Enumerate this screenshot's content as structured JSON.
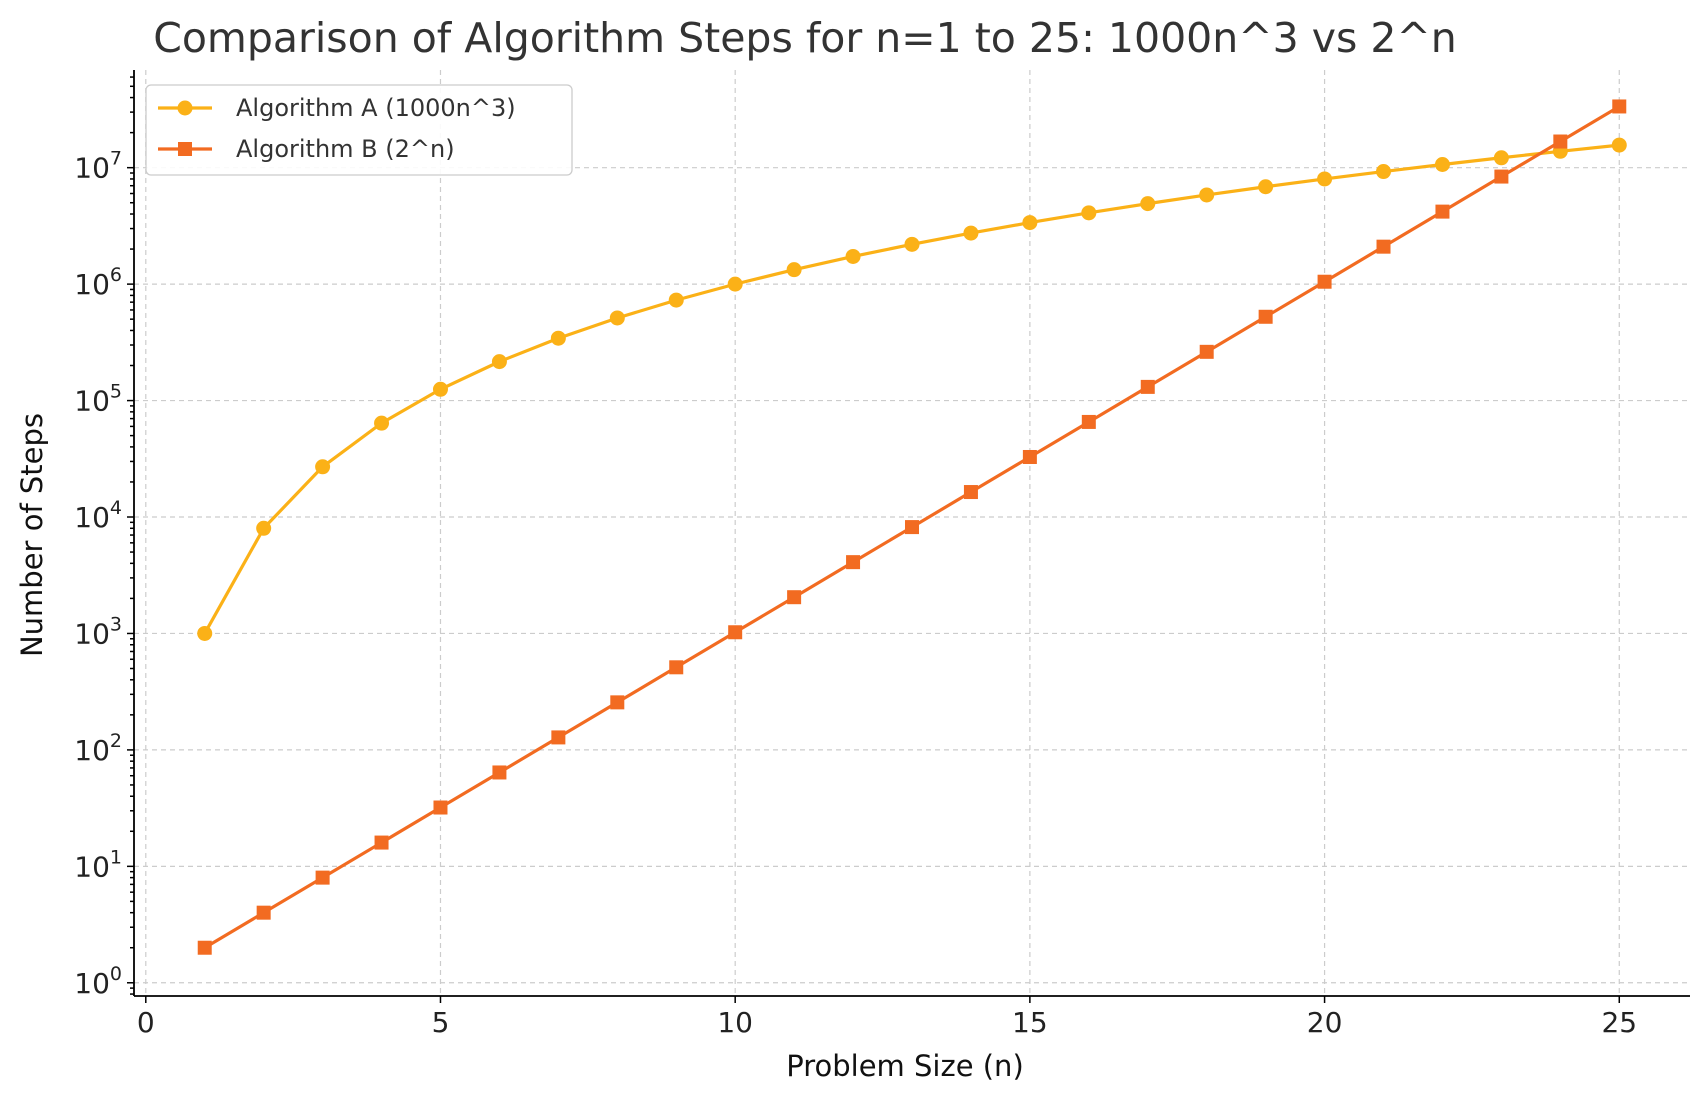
{
  "chart_data": {
    "type": "line",
    "title": "Comparison of Algorithm Steps for n=1 to 25: 1000n^3 vs 2^n",
    "xlabel": "Problem Size (n)",
    "ylabel": "Number of Steps",
    "yscale": "log",
    "grid": true,
    "legend_position": "top-left",
    "xlim": [
      -0.2,
      26.2
    ],
    "ylim": [
      0.77,
      69000000
    ],
    "x_ticks": [
      0,
      5,
      10,
      15,
      20,
      25
    ],
    "y_ticks": [
      {
        "value": 1,
        "base": "10",
        "exp": "0"
      },
      {
        "value": 10,
        "base": "10",
        "exp": "1"
      },
      {
        "value": 100,
        "base": "10",
        "exp": "2"
      },
      {
        "value": 1000,
        "base": "10",
        "exp": "3"
      },
      {
        "value": 10000,
        "base": "10",
        "exp": "4"
      },
      {
        "value": 100000,
        "base": "10",
        "exp": "5"
      },
      {
        "value": 1000000,
        "base": "10",
        "exp": "6"
      },
      {
        "value": 10000000,
        "base": "10",
        "exp": "7"
      }
    ],
    "x": [
      1,
      2,
      3,
      4,
      5,
      6,
      7,
      8,
      9,
      10,
      11,
      12,
      13,
      14,
      15,
      16,
      17,
      18,
      19,
      20,
      21,
      22,
      23,
      24,
      25
    ],
    "series": [
      {
        "name": "Algorithm A (1000n^3)",
        "color": "#FBB117",
        "marker": "circle",
        "values": [
          1000,
          8000,
          27000,
          64000,
          125000,
          216000,
          343000,
          512000,
          729000,
          1000000,
          1331000,
          1728000,
          2197000,
          2744000,
          3375000,
          4096000,
          4913000,
          5832000,
          6859000,
          8000000,
          9261000,
          10648000,
          12167000,
          13824000,
          15625000
        ]
      },
      {
        "name": "Algorithm B (2^n)",
        "color": "#F26B21",
        "marker": "square",
        "values": [
          2,
          4,
          8,
          16,
          32,
          64,
          128,
          256,
          512,
          1024,
          2048,
          4096,
          8192,
          16384,
          32768,
          65536,
          131072,
          262144,
          524288,
          1048576,
          2097152,
          4194304,
          8388608,
          16777216,
          33554432
        ]
      }
    ]
  }
}
